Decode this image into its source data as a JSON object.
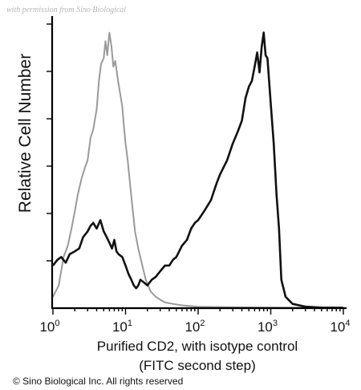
{
  "watermark": "with permission from Sino Biological",
  "copyright": "© Sino Biological Inc. All rights reserved",
  "chart_data": {
    "type": "line",
    "title": "",
    "ylabel": "Relative Cell Number",
    "xlabel_lines": [
      "Purified CD2, with isotype control",
      "(FITC second step)"
    ],
    "x_scale": "log",
    "xlim": [
      1,
      10000
    ],
    "ylim": [
      0,
      100
    ],
    "x_ticks": [
      {
        "base": "10",
        "exp": "0"
      },
      {
        "base": "10",
        "exp": "1"
      },
      {
        "base": "10",
        "exp": "2"
      },
      {
        "base": "10",
        "exp": "3"
      },
      {
        "base": "10",
        "exp": "4"
      }
    ],
    "grid": false,
    "series": [
      {
        "color": "#9a9a9a",
        "x": [
          1,
          1.2,
          1.4,
          1.6,
          1.8,
          2,
          2.2,
          2.5,
          2.8,
          3,
          3.3,
          3.6,
          4,
          4.3,
          4.6,
          5,
          5.3,
          5.6,
          6,
          6.4,
          6.8,
          7.2,
          7.6,
          8,
          8.5,
          9,
          9.5,
          10,
          10.7,
          11.5,
          12.5,
          13.5,
          15,
          17,
          19,
          22,
          26,
          30,
          35,
          45,
          60,
          100,
          300,
          1000,
          10000
        ],
        "y": [
          4,
          8,
          18,
          22,
          28,
          34,
          40,
          46,
          50,
          52,
          60,
          63,
          70,
          80,
          86,
          88,
          94,
          89,
          97,
          92,
          85,
          87,
          83,
          79,
          75,
          71,
          64,
          58,
          52,
          44,
          35,
          27,
          21,
          15,
          10,
          6,
          4,
          3,
          2,
          1.5,
          1,
          0.5,
          0.3,
          0.2,
          0.1
        ]
      },
      {
        "color": "#111111",
        "x": [
          1,
          1.15,
          1.3,
          1.5,
          1.7,
          2,
          2.3,
          2.6,
          3,
          3.3,
          3.6,
          4,
          4.5,
          5,
          5.5,
          6,
          6.5,
          7,
          7.5,
          8,
          9,
          10,
          11,
          12,
          13,
          14,
          15,
          16,
          18,
          20,
          23,
          26,
          30,
          35,
          40,
          45,
          50,
          60,
          70,
          80,
          90,
          100,
          120,
          150,
          180,
          200,
          250,
          300,
          350,
          400,
          450,
          500,
          550,
          600,
          650,
          700,
          750,
          800,
          850,
          900,
          1000,
          1100,
          1200,
          1300,
          1400,
          1600,
          2000,
          3000,
          5000,
          10000
        ],
        "y": [
          15,
          17,
          18,
          16,
          19,
          20,
          21,
          25,
          27,
          29,
          30,
          28,
          31,
          27,
          25,
          23,
          21,
          24,
          20,
          19,
          18,
          15,
          12,
          10,
          8,
          7,
          8,
          10,
          9,
          8,
          10,
          11,
          13,
          15,
          15,
          17,
          18,
          22,
          24,
          28,
          30,
          31,
          34,
          38,
          44,
          47,
          52,
          58,
          62,
          66,
          74,
          78,
          80,
          85,
          90,
          83,
          92,
          97,
          89,
          88,
          72,
          58,
          40,
          28,
          10,
          4,
          1.5,
          0.5,
          0.2,
          0.1
        ]
      }
    ]
  }
}
